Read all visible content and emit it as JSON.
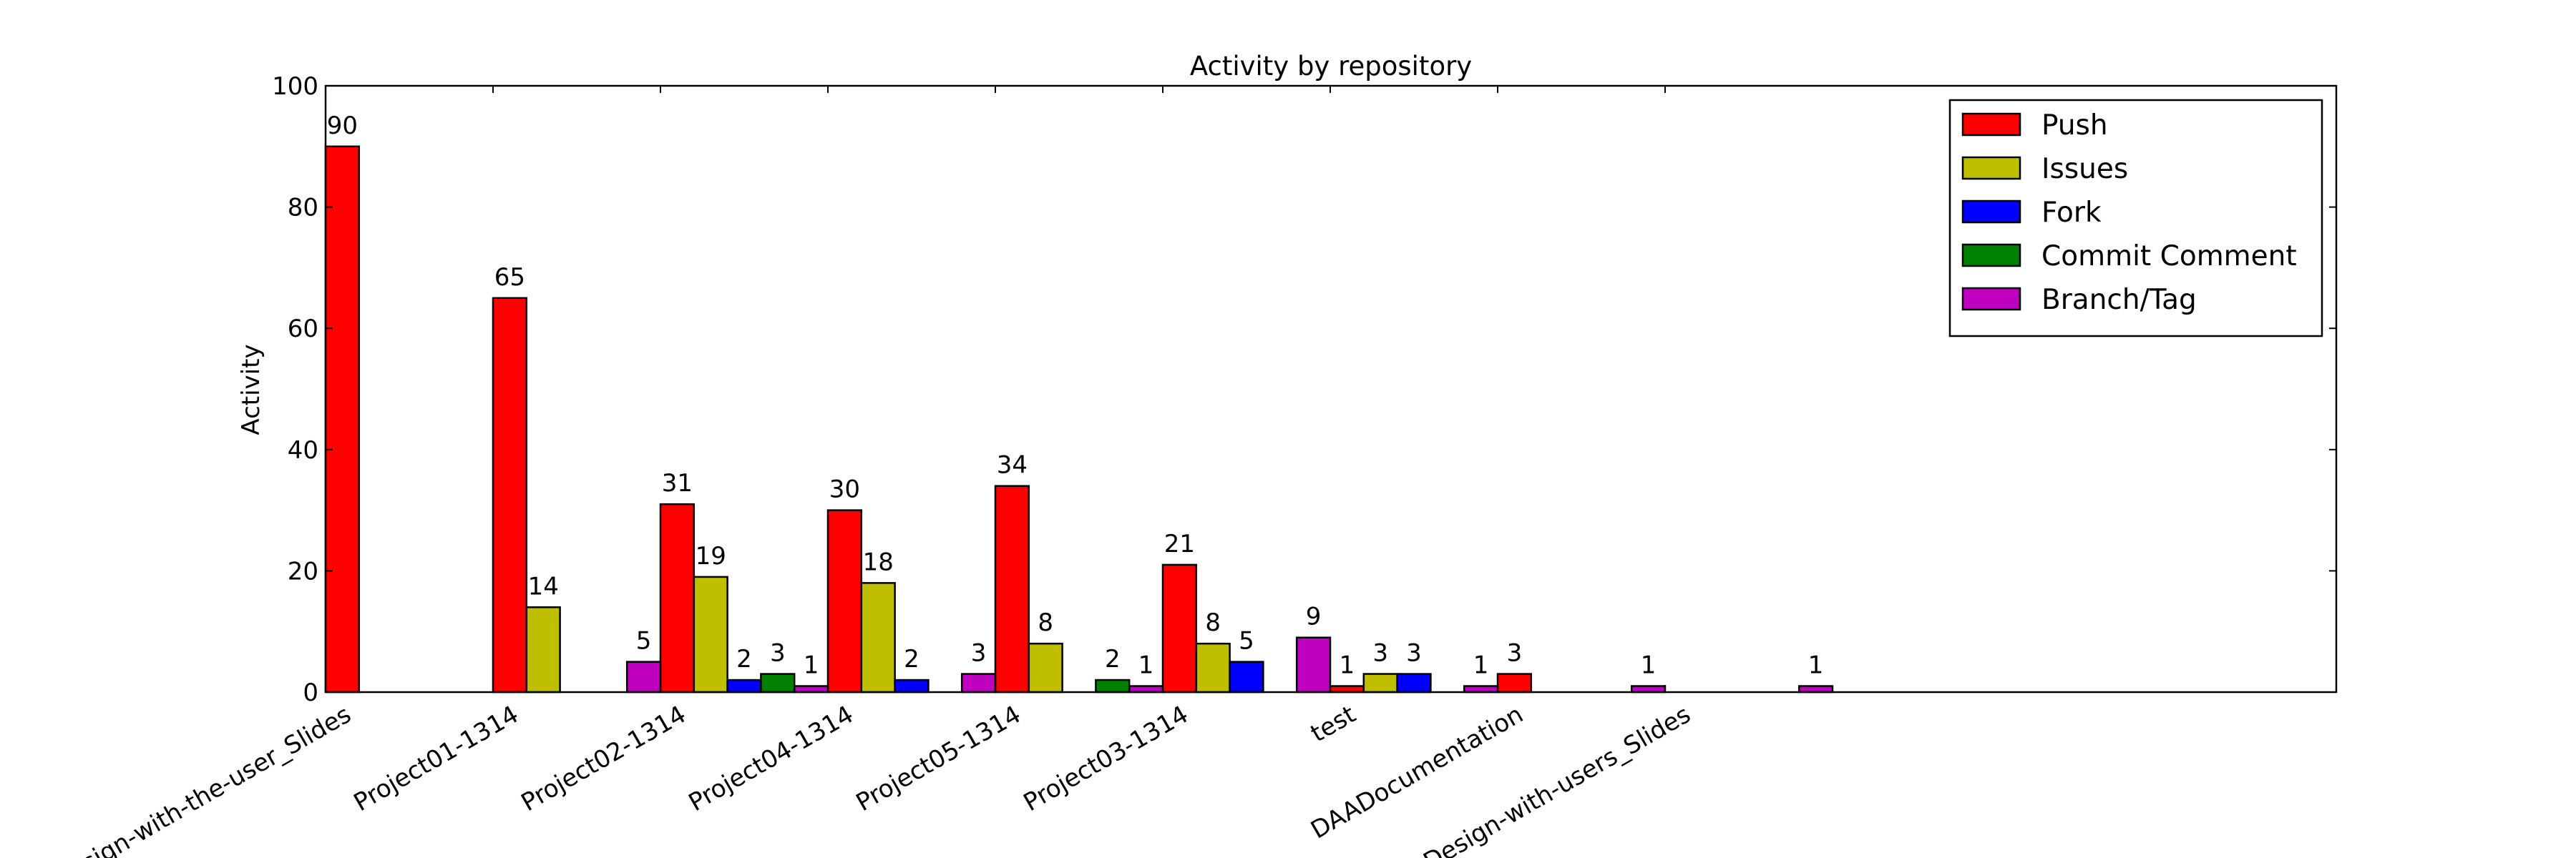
{
  "chart_data": {
    "type": "bar",
    "title": "Activity by repository",
    "xlabel": "",
    "ylabel": "Activity",
    "ylim": [
      0,
      100
    ],
    "yticks": [
      "0",
      "20",
      "40",
      "60",
      "80",
      "100"
    ],
    "grid": false,
    "legend_position": "top-right",
    "categories": [
      "Design-with-the-user_Slides",
      "Project01-1314",
      "Project02-1314",
      "Project04-1314",
      "Project05-1314",
      "Project03-1314",
      "test",
      "DAADocumentation",
      "Design-with-users_Slides"
    ],
    "series": [
      {
        "name": "Push",
        "color": "#ff0000",
        "points": [
          {
            "slot": 0,
            "value": 90
          },
          {
            "slot": 5,
            "value": 65
          },
          {
            "slot": 10,
            "value": 31
          },
          {
            "slot": 15,
            "value": 30
          },
          {
            "slot": 20,
            "value": 34
          },
          {
            "slot": 25,
            "value": 21
          },
          {
            "slot": 30,
            "value": 1
          },
          {
            "slot": 35,
            "value": 3
          }
        ]
      },
      {
        "name": "Issues",
        "color": "#bfbf00",
        "points": [
          {
            "slot": 6,
            "value": 14
          },
          {
            "slot": 11,
            "value": 19
          },
          {
            "slot": 16,
            "value": 18
          },
          {
            "slot": 21,
            "value": 8
          },
          {
            "slot": 26,
            "value": 8
          },
          {
            "slot": 31,
            "value": 3
          }
        ]
      },
      {
        "name": "Fork",
        "color": "#0000ff",
        "points": [
          {
            "slot": 12,
            "value": 2
          },
          {
            "slot": 17,
            "value": 2
          },
          {
            "slot": 27,
            "value": 5
          },
          {
            "slot": 32,
            "value": 3
          }
        ]
      },
      {
        "name": "Commit Comment",
        "color": "#008000",
        "points": [
          {
            "slot": 13,
            "value": 3
          },
          {
            "slot": 23,
            "value": 2
          }
        ]
      },
      {
        "name": "Branch/Tag",
        "color": "#bf00bf",
        "points": [
          {
            "slot": 9,
            "value": 5
          },
          {
            "slot": 14,
            "value": 1
          },
          {
            "slot": 19,
            "value": 3
          },
          {
            "slot": 24,
            "value": 1
          },
          {
            "slot": 29,
            "value": 9
          },
          {
            "slot": 34,
            "value": 1
          },
          {
            "slot": 39,
            "value": 1
          },
          {
            "slot": 44,
            "value": 1
          }
        ]
      }
    ]
  }
}
